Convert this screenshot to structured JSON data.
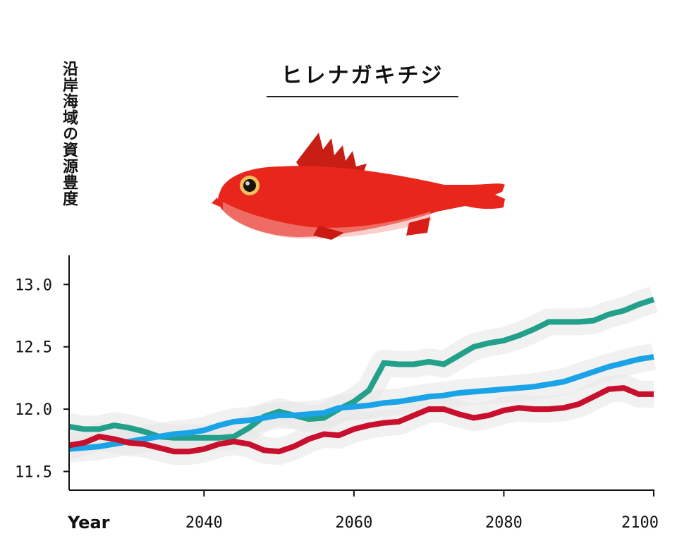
{
  "title": "ヒレナガキチジ",
  "ylabel": "沿岸海域の資源豊度",
  "colors": {
    "teal": "#22a08a",
    "blue": "#1aa3e6",
    "red": "#c8102e",
    "band": "#e6e6e6",
    "axis": "#111111"
  },
  "fish_icon": "red-rockfish-illustration",
  "chart_data": {
    "type": "line",
    "xlabel": "Year",
    "xlim": [
      2022,
      2100
    ],
    "ylim": [
      11.35,
      13.2
    ],
    "x_ticks": [
      2040,
      2060,
      2080,
      2100
    ],
    "y_ticks": [
      11.5,
      12.0,
      12.5,
      13.0
    ],
    "y_tick_labels": [
      "11.5",
      "12.0",
      "12.5",
      "13.0"
    ],
    "grid": false,
    "legend": "none",
    "series": [
      {
        "color": "#22a08a",
        "x": [
          2022,
          2024,
          2026,
          2028,
          2030,
          2032,
          2034,
          2036,
          2038,
          2040,
          2042,
          2044,
          2046,
          2048,
          2050,
          2052,
          2054,
          2056,
          2058,
          2060,
          2062,
          2064,
          2066,
          2068,
          2070,
          2072,
          2074,
          2076,
          2078,
          2080,
          2082,
          2084,
          2086,
          2088,
          2090,
          2092,
          2094,
          2096,
          2098,
          2100
        ],
        "y": [
          11.86,
          11.84,
          11.84,
          11.87,
          11.85,
          11.82,
          11.78,
          11.77,
          11.77,
          11.77,
          11.77,
          11.78,
          11.85,
          11.94,
          11.98,
          11.95,
          11.92,
          11.93,
          12.0,
          12.06,
          12.15,
          12.37,
          12.36,
          12.36,
          12.38,
          12.36,
          12.43,
          12.5,
          12.53,
          12.55,
          12.59,
          12.64,
          12.7,
          12.7,
          12.7,
          12.71,
          12.76,
          12.79,
          12.84,
          12.88
        ]
      },
      {
        "color": "#1aa3e6",
        "x": [
          2022,
          2024,
          2026,
          2028,
          2030,
          2032,
          2034,
          2036,
          2038,
          2040,
          2042,
          2044,
          2046,
          2048,
          2050,
          2052,
          2054,
          2056,
          2058,
          2060,
          2062,
          2064,
          2066,
          2068,
          2070,
          2072,
          2074,
          2076,
          2078,
          2080,
          2082,
          2084,
          2086,
          2088,
          2090,
          2092,
          2094,
          2096,
          2098,
          2100
        ],
        "y": [
          11.68,
          11.69,
          11.7,
          11.72,
          11.74,
          11.76,
          11.78,
          11.8,
          11.81,
          11.83,
          11.87,
          11.9,
          11.91,
          11.93,
          11.95,
          11.95,
          11.96,
          11.97,
          12.01,
          12.02,
          12.03,
          12.05,
          12.06,
          12.08,
          12.1,
          12.11,
          12.13,
          12.14,
          12.15,
          12.16,
          12.17,
          12.18,
          12.2,
          12.22,
          12.26,
          12.3,
          12.34,
          12.37,
          12.4,
          12.42
        ]
      },
      {
        "color": "#c8102e",
        "x": [
          2022,
          2024,
          2026,
          2028,
          2030,
          2032,
          2034,
          2036,
          2038,
          2040,
          2042,
          2044,
          2046,
          2048,
          2050,
          2052,
          2054,
          2056,
          2058,
          2060,
          2062,
          2064,
          2066,
          2068,
          2070,
          2072,
          2074,
          2076,
          2078,
          2080,
          2082,
          2084,
          2086,
          2088,
          2090,
          2092,
          2094,
          2096,
          2098,
          2100
        ],
        "y": [
          11.71,
          11.73,
          11.78,
          11.76,
          11.73,
          11.72,
          11.69,
          11.66,
          11.66,
          11.68,
          11.72,
          11.74,
          11.72,
          11.67,
          11.66,
          11.7,
          11.76,
          11.8,
          11.79,
          11.84,
          11.87,
          11.89,
          11.9,
          11.95,
          12.0,
          12.0,
          11.96,
          11.93,
          11.95,
          11.99,
          12.01,
          12.0,
          12.0,
          12.01,
          12.04,
          12.1,
          12.16,
          12.17,
          12.12,
          12.12
        ]
      }
    ]
  }
}
